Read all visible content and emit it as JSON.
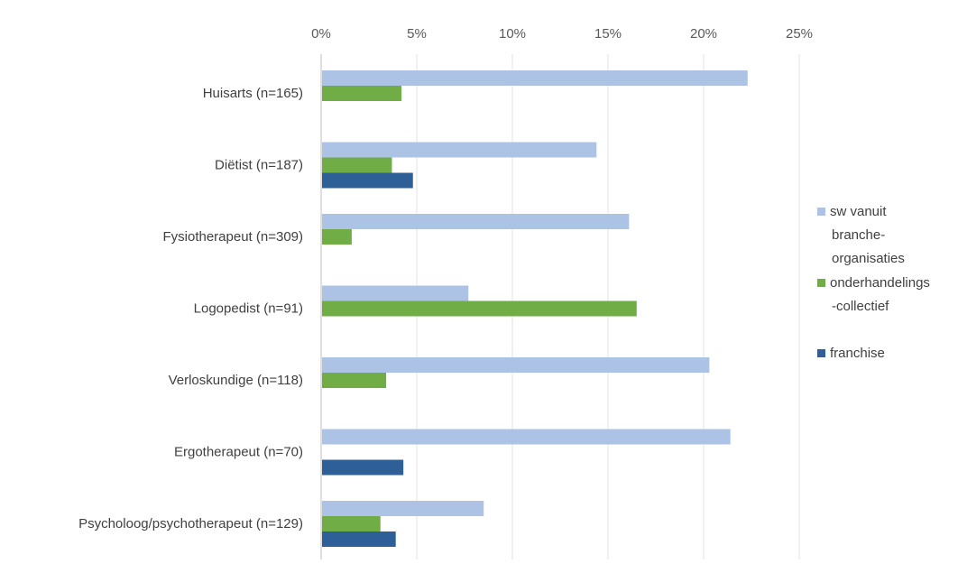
{
  "chart_data": {
    "type": "bar",
    "orientation": "horizontal",
    "x_axis_position": "top",
    "xlim": [
      0,
      25
    ],
    "x_tick_values": [
      0,
      5,
      10,
      15,
      20,
      25
    ],
    "x_tick_labels": [
      "0%",
      "5%",
      "10%",
      "15%",
      "20%",
      "25%"
    ],
    "grid": true,
    "legend_position": "right",
    "categories": [
      "Huisarts (n=165)",
      "Diëtist (n=187)",
      "Fysiotherapeut (n=309)",
      "Logopedist (n=91)",
      "Verloskundige (n=118)",
      "Ergotherapeut (n=70)",
      "Psycholoog/psychotherapeut (n=129)"
    ],
    "series": [
      {
        "name": "sw vanuit branche-organisaties",
        "legend_lines": [
          "sw vanuit",
          "branche-",
          "organisaties"
        ],
        "color": "#adc3e5",
        "values": [
          22.3,
          14.4,
          16.1,
          7.7,
          20.3,
          21.4,
          8.5
        ]
      },
      {
        "name": "onderhandelings-collectief",
        "legend_lines": [
          "onderhandelings",
          "-collectief"
        ],
        "color": "#70ad47",
        "values": [
          4.2,
          3.7,
          1.6,
          16.5,
          3.4,
          0,
          3.1
        ]
      },
      {
        "name": "franchise",
        "legend_lines": [
          "franchise"
        ],
        "color": "#2e5f97",
        "values": [
          0,
          4.8,
          0,
          0,
          0,
          4.3,
          3.9
        ]
      }
    ]
  }
}
